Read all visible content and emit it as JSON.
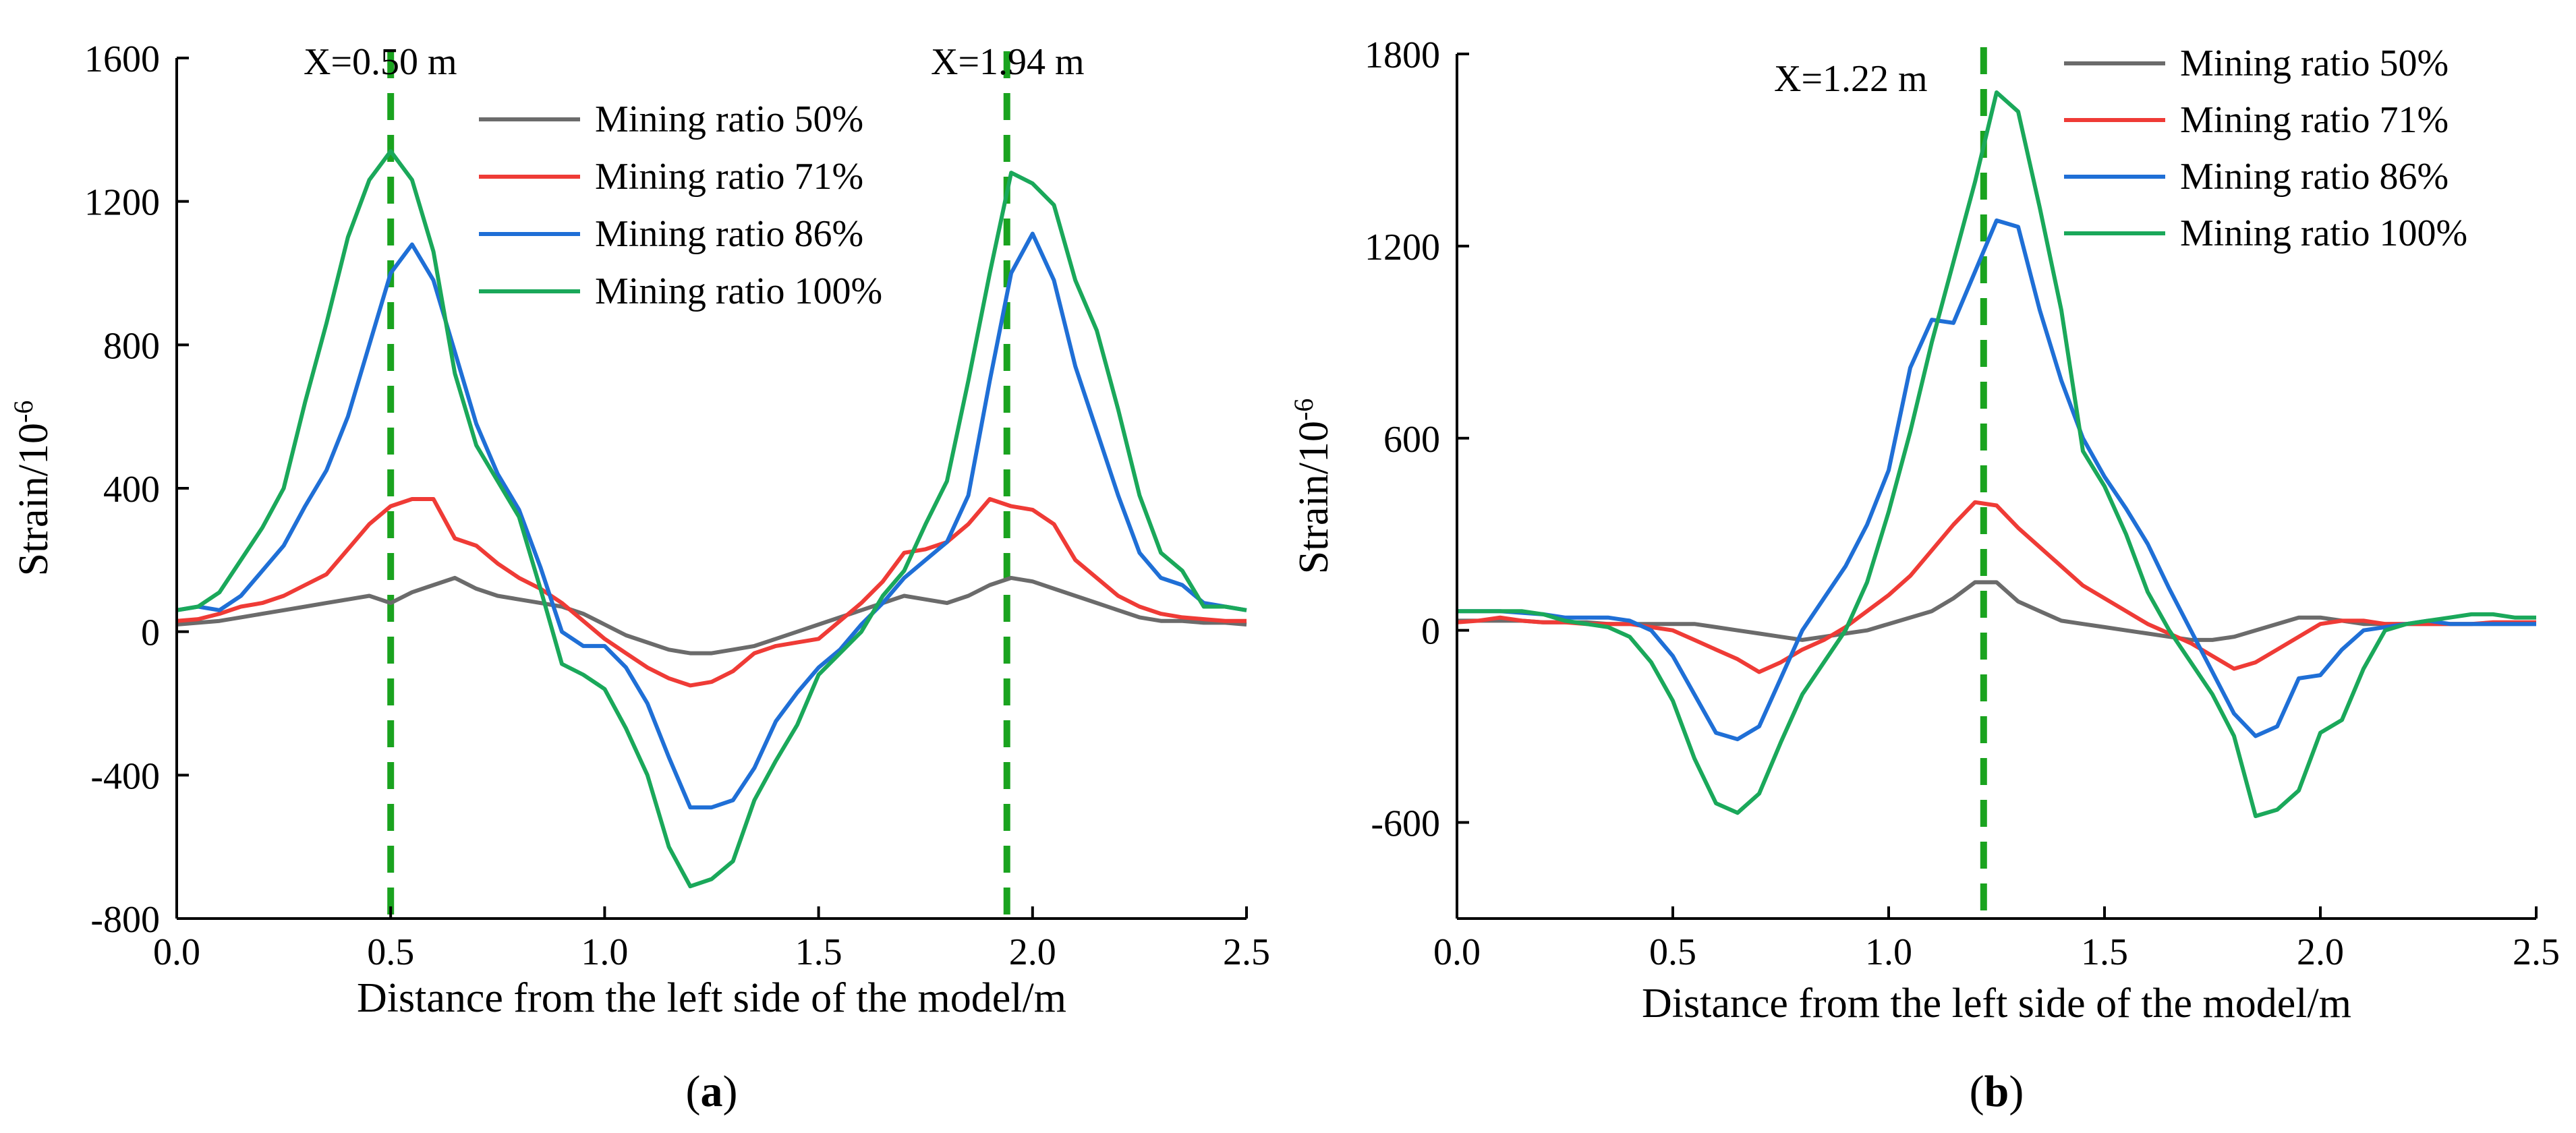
{
  "chart_data": [
    {
      "type": "line",
      "panel_label": "(a)",
      "xlabel": "Distance from the left side of the model/m",
      "ylabel": "Strain/10",
      "ylabel_sup": "-6",
      "xlim": [
        0,
        2.5
      ],
      "ylim": [
        -800,
        1600
      ],
      "xticks": [
        0,
        0.5,
        1.0,
        1.5,
        2.0,
        2.5
      ],
      "xtick_labels": [
        "0.0",
        "0.5",
        "1.0",
        "1.5",
        "2.0",
        "2.5"
      ],
      "yticks": [
        -800,
        -400,
        0,
        400,
        800,
        1200,
        1600
      ],
      "ytick_labels": [
        "-800",
        "-400",
        "0",
        "400",
        "800",
        "1200",
        "1600"
      ],
      "legend_position": "top-right",
      "annotations": [
        {
          "x": 0.5,
          "text": "X=0.50 m"
        },
        {
          "x": 1.94,
          "text": "X=1.94 m"
        }
      ],
      "x": [
        0,
        0.05,
        0.1,
        0.15,
        0.2,
        0.25,
        0.3,
        0.35,
        0.4,
        0.45,
        0.5,
        0.55,
        0.6,
        0.65,
        0.7,
        0.75,
        0.8,
        0.85,
        0.9,
        0.95,
        1.0,
        1.05,
        1.1,
        1.15,
        1.2,
        1.25,
        1.3,
        1.35,
        1.4,
        1.45,
        1.5,
        1.55,
        1.6,
        1.65,
        1.7,
        1.75,
        1.8,
        1.85,
        1.9,
        1.95,
        2.0,
        2.05,
        2.1,
        2.15,
        2.2,
        2.25,
        2.3,
        2.35,
        2.4,
        2.45,
        2.5
      ],
      "series": [
        {
          "name": "Mining ratio 50%",
          "color": "#6b6b6b",
          "values": [
            20,
            25,
            30,
            40,
            50,
            60,
            70,
            80,
            90,
            100,
            80,
            110,
            130,
            150,
            120,
            100,
            90,
            80,
            70,
            50,
            20,
            -10,
            -30,
            -50,
            -60,
            -60,
            -50,
            -40,
            -20,
            0,
            20,
            40,
            60,
            80,
            100,
            90,
            80,
            100,
            130,
            150,
            140,
            120,
            100,
            80,
            60,
            40,
            30,
            30,
            25,
            25,
            20
          ]
        },
        {
          "name": "Mining ratio 71%",
          "color": "#ef3b36",
          "values": [
            30,
            35,
            50,
            70,
            80,
            100,
            130,
            160,
            230,
            300,
            350,
            370,
            370,
            260,
            240,
            190,
            150,
            120,
            80,
            30,
            -20,
            -60,
            -100,
            -130,
            -150,
            -140,
            -110,
            -60,
            -40,
            -30,
            -20,
            30,
            80,
            140,
            220,
            230,
            250,
            300,
            370,
            350,
            340,
            300,
            200,
            150,
            100,
            70,
            50,
            40,
            35,
            30,
            30
          ]
        },
        {
          "name": "Mining ratio 86%",
          "color": "#1f6fd6",
          "values": [
            60,
            70,
            60,
            100,
            170,
            240,
            350,
            450,
            600,
            800,
            1000,
            1080,
            980,
            780,
            580,
            440,
            340,
            180,
            0,
            -40,
            -40,
            -100,
            -200,
            -350,
            -490,
            -490,
            -470,
            -380,
            -250,
            -170,
            -100,
            -50,
            20,
            80,
            150,
            200,
            250,
            380,
            700,
            1000,
            1110,
            980,
            740,
            560,
            380,
            220,
            150,
            130,
            80,
            70,
            60
          ]
        },
        {
          "name": "Mining ratio 100%",
          "color": "#1aa85a",
          "values": [
            60,
            70,
            110,
            200,
            290,
            400,
            640,
            860,
            1100,
            1260,
            1340,
            1260,
            1060,
            720,
            520,
            420,
            320,
            120,
            -90,
            -120,
            -160,
            -270,
            -400,
            -600,
            -710,
            -690,
            -640,
            -470,
            -360,
            -260,
            -120,
            -60,
            0,
            100,
            170,
            300,
            420,
            700,
            1000,
            1280,
            1250,
            1190,
            980,
            840,
            620,
            380,
            220,
            170,
            70,
            70,
            60
          ]
        }
      ]
    },
    {
      "type": "line",
      "panel_label": "(b)",
      "xlabel": "Distance from the left side of the model/m",
      "ylabel": "Strain/10",
      "ylabel_sup": "-6",
      "xlim": [
        0,
        2.5
      ],
      "ylim": [
        -900,
        1800
      ],
      "xticks": [
        0,
        0.5,
        1.0,
        1.5,
        2.0,
        2.5
      ],
      "xtick_labels": [
        "0.0",
        "0.5",
        "1.0",
        "1.5",
        "2.0",
        "2.5"
      ],
      "yticks": [
        -600,
        0,
        600,
        1200,
        1800
      ],
      "ytick_labels": [
        "-600",
        "0",
        "600",
        "1200",
        "1800"
      ],
      "legend_position": "top-right",
      "annotations": [
        {
          "x": 1.22,
          "text": "X=1.22 m"
        }
      ],
      "x": [
        0,
        0.05,
        0.1,
        0.15,
        0.2,
        0.25,
        0.3,
        0.35,
        0.4,
        0.45,
        0.5,
        0.55,
        0.6,
        0.65,
        0.7,
        0.75,
        0.8,
        0.85,
        0.9,
        0.95,
        1.0,
        1.05,
        1.1,
        1.15,
        1.2,
        1.25,
        1.3,
        1.35,
        1.4,
        1.45,
        1.5,
        1.55,
        1.6,
        1.65,
        1.7,
        1.75,
        1.8,
        1.85,
        1.9,
        1.95,
        2.0,
        2.05,
        2.1,
        2.15,
        2.2,
        2.25,
        2.3,
        2.35,
        2.4,
        2.45,
        2.5
      ],
      "series": [
        {
          "name": "Mining ratio 50%",
          "color": "#6b6b6b",
          "values": [
            30,
            30,
            30,
            30,
            25,
            25,
            25,
            20,
            20,
            20,
            20,
            20,
            10,
            0,
            -10,
            -20,
            -30,
            -20,
            -10,
            0,
            20,
            40,
            60,
            100,
            150,
            150,
            90,
            60,
            30,
            20,
            10,
            0,
            -10,
            -20,
            -30,
            -30,
            -20,
            0,
            20,
            40,
            40,
            30,
            20,
            20,
            20,
            20,
            20,
            20,
            20,
            20,
            20
          ]
        },
        {
          "name": "Mining ratio 71%",
          "color": "#ef3b36",
          "values": [
            25,
            30,
            40,
            30,
            25,
            25,
            20,
            20,
            20,
            10,
            0,
            -30,
            -60,
            -90,
            -130,
            -100,
            -60,
            -30,
            10,
            60,
            110,
            170,
            250,
            330,
            400,
            390,
            320,
            260,
            200,
            140,
            100,
            60,
            20,
            -10,
            -40,
            -80,
            -120,
            -100,
            -60,
            -20,
            20,
            30,
            30,
            20,
            20,
            20,
            20,
            20,
            25,
            25,
            25
          ]
        },
        {
          "name": "Mining ratio 86%",
          "color": "#1f6fd6",
          "values": [
            60,
            60,
            60,
            55,
            50,
            40,
            40,
            40,
            30,
            0,
            -80,
            -200,
            -320,
            -340,
            -300,
            -150,
            0,
            100,
            200,
            330,
            500,
            820,
            970,
            960,
            1120,
            1280,
            1260,
            1000,
            780,
            600,
            480,
            380,
            270,
            130,
            0,
            -130,
            -260,
            -330,
            -300,
            -150,
            -140,
            -60,
            0,
            10,
            20,
            30,
            20,
            20,
            20,
            20,
            20
          ]
        },
        {
          "name": "Mining ratio 100%",
          "color": "#1aa85a",
          "values": [
            60,
            60,
            60,
            60,
            50,
            30,
            20,
            10,
            -20,
            -100,
            -220,
            -400,
            -540,
            -570,
            -510,
            -350,
            -200,
            -100,
            0,
            150,
            370,
            620,
            900,
            1150,
            1400,
            1680,
            1620,
            1320,
            1000,
            560,
            450,
            300,
            120,
            0,
            -100,
            -200,
            -330,
            -580,
            -560,
            -500,
            -320,
            -280,
            -120,
            0,
            20,
            30,
            40,
            50,
            50,
            40,
            40
          ]
        }
      ]
    }
  ]
}
